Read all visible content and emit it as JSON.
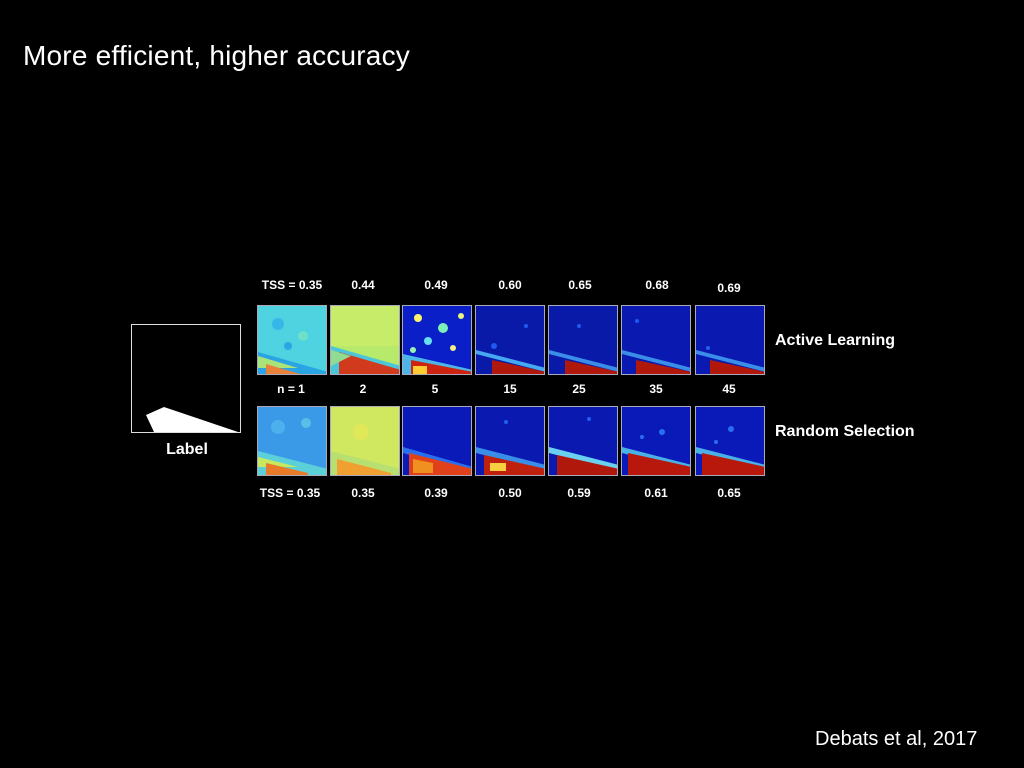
{
  "slide": {
    "title": "More efficient, higher accuracy",
    "citation": "Debats et al, 2017"
  },
  "label_panel": {
    "caption": "Label"
  },
  "rows": {
    "active": {
      "label": "Active Learning"
    },
    "random": {
      "label": "Random Selection"
    }
  },
  "tss_prefix": "TSS =",
  "n_prefix": "n =",
  "active_tss": [
    "0.35",
    "0.44",
    "0.49",
    "0.60",
    "0.65",
    "0.68",
    "0.69"
  ],
  "n_values": [
    "1",
    "2",
    "5",
    "15",
    "25",
    "35",
    "45"
  ],
  "random_tss": [
    "0.35",
    "0.35",
    "0.39",
    "0.50",
    "0.59",
    "0.61",
    "0.65"
  ],
  "colors": {
    "background": "#000000",
    "text": "#ffffff",
    "colormap": "jet",
    "tile_border": "#aab"
  }
}
